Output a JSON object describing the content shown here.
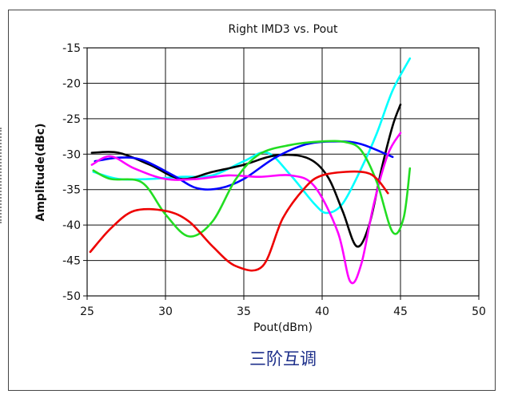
{
  "chart_data": {
    "type": "line",
    "title": "Right IMD3 vs. Pout",
    "xlabel": "Pout(dBm)",
    "ylabel": "Amplitude(dBc)",
    "caption": "三阶互调",
    "xlim": [
      25,
      50
    ],
    "ylim": [
      -50,
      -15
    ],
    "xticks": [
      25,
      30,
      35,
      40,
      45,
      50
    ],
    "yticks": [
      -50,
      -45,
      -40,
      -35,
      -30,
      -25,
      -20,
      -15
    ],
    "grid": true,
    "series": [
      {
        "color": "#00ffff",
        "points": [
          [
            25.4,
            -32.5
          ],
          [
            27,
            -33.5
          ],
          [
            29,
            -33.5
          ],
          [
            31,
            -33.2
          ],
          [
            33,
            -33
          ],
          [
            35,
            -31
          ],
          [
            36.5,
            -29.8
          ],
          [
            38,
            -33
          ],
          [
            39.5,
            -37
          ],
          [
            40.3,
            -38.3
          ],
          [
            41.3,
            -37
          ],
          [
            42.5,
            -32
          ],
          [
            43.5,
            -27
          ],
          [
            44.5,
            -21
          ],
          [
            45.6,
            -16.5
          ]
        ]
      },
      {
        "color": "#000000",
        "points": [
          [
            25.3,
            -29.8
          ],
          [
            27,
            -29.8
          ],
          [
            29,
            -31.5
          ],
          [
            31,
            -33.5
          ],
          [
            33,
            -32.5
          ],
          [
            35,
            -31.5
          ],
          [
            37,
            -30.2
          ],
          [
            39,
            -30.5
          ],
          [
            40.3,
            -33
          ],
          [
            41.3,
            -38
          ],
          [
            42.2,
            -43
          ],
          [
            43,
            -40
          ],
          [
            43.8,
            -32
          ],
          [
            44.5,
            -26
          ],
          [
            45,
            -23
          ]
        ]
      },
      {
        "color": "#0000ff",
        "points": [
          [
            25.5,
            -31
          ],
          [
            27,
            -30.5
          ],
          [
            28.5,
            -30.8
          ],
          [
            30.5,
            -33
          ],
          [
            32,
            -34.8
          ],
          [
            33.5,
            -34.8
          ],
          [
            35,
            -33.5
          ],
          [
            37,
            -30.5
          ],
          [
            39,
            -28.6
          ],
          [
            41,
            -28.2
          ],
          [
            42.5,
            -28.6
          ],
          [
            44.5,
            -30.4
          ]
        ]
      },
      {
        "color": "#ff00ff",
        "points": [
          [
            25.3,
            -31.5
          ],
          [
            26.5,
            -30.3
          ],
          [
            28,
            -32
          ],
          [
            30,
            -33.5
          ],
          [
            32,
            -33.5
          ],
          [
            34,
            -33
          ],
          [
            36,
            -33.2
          ],
          [
            38,
            -33
          ],
          [
            39.5,
            -34.5
          ],
          [
            41,
            -41
          ],
          [
            41.8,
            -48
          ],
          [
            42.5,
            -45.5
          ],
          [
            43.3,
            -37
          ],
          [
            44.2,
            -30
          ],
          [
            45,
            -27
          ]
        ]
      },
      {
        "color": "#22dd22",
        "points": [
          [
            25.4,
            -32.3
          ],
          [
            26.5,
            -33.5
          ],
          [
            28.5,
            -34
          ],
          [
            30,
            -38.5
          ],
          [
            31.5,
            -41.6
          ],
          [
            33,
            -39.5
          ],
          [
            34.5,
            -33.5
          ],
          [
            36,
            -30
          ],
          [
            38,
            -28.7
          ],
          [
            40,
            -28.2
          ],
          [
            41.5,
            -28.3
          ],
          [
            42.5,
            -29.5
          ],
          [
            43.5,
            -34
          ],
          [
            44.5,
            -41
          ],
          [
            45.2,
            -39
          ],
          [
            45.6,
            -32
          ]
        ]
      },
      {
        "color": "#ee0000",
        "points": [
          [
            25.2,
            -43.8
          ],
          [
            26.5,
            -40.5
          ],
          [
            28,
            -38
          ],
          [
            30,
            -38
          ],
          [
            31.5,
            -39.5
          ],
          [
            33,
            -43
          ],
          [
            34.5,
            -45.8
          ],
          [
            36.2,
            -45.8
          ],
          [
            37.5,
            -39
          ],
          [
            39,
            -34.5
          ],
          [
            40,
            -33
          ],
          [
            41.5,
            -32.5
          ],
          [
            42.8,
            -32.6
          ],
          [
            43.5,
            -33.5
          ],
          [
            44.2,
            -35.5
          ]
        ]
      }
    ]
  }
}
